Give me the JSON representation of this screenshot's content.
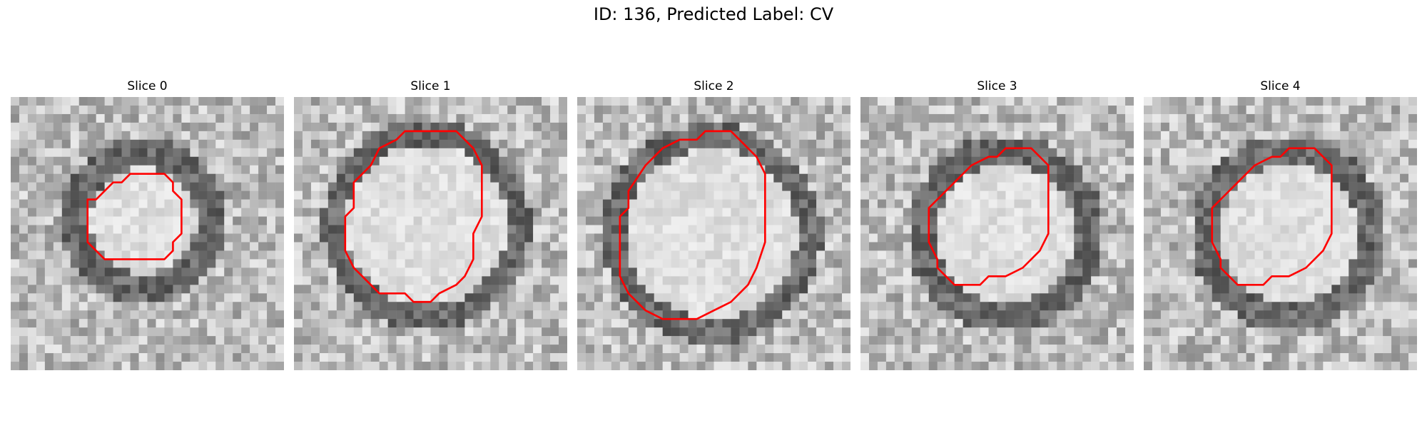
{
  "figure": {
    "title": "ID: 136, Predicted Label: CV"
  },
  "colors": {
    "contour": "#ff0000",
    "background": "#ffffff"
  },
  "slices": [
    {
      "title": "Slice 0",
      "pattern": "ring-mid"
    },
    {
      "title": "Slice 1",
      "pattern": "ring-large"
    },
    {
      "title": "Slice 2",
      "pattern": "ring-largest"
    },
    {
      "title": "Slice 3",
      "pattern": "ring-offset"
    },
    {
      "title": "Slice 4",
      "pattern": "ring-offset"
    }
  ]
}
